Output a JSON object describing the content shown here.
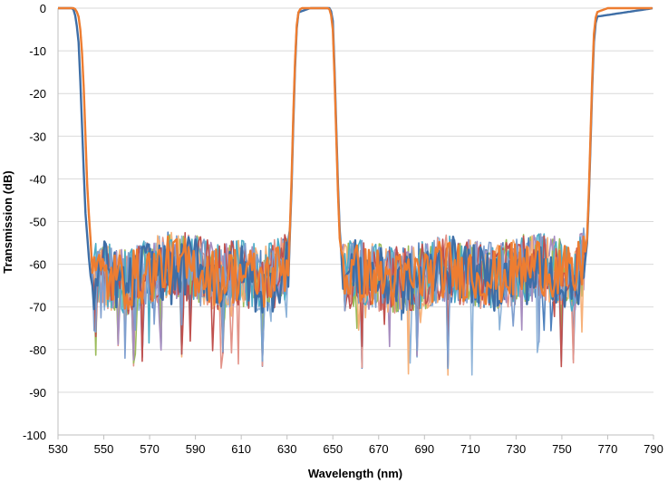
{
  "chart_data": {
    "type": "line",
    "title": "",
    "xlabel": "Wavelength (nm)",
    "ylabel": "Transmission (dB)",
    "xlim": [
      530,
      790
    ],
    "ylim": [
      -100,
      0
    ],
    "x_ticks": [
      530,
      550,
      570,
      590,
      610,
      630,
      650,
      670,
      690,
      710,
      730,
      750,
      770,
      790
    ],
    "y_ticks": [
      0,
      -10,
      -20,
      -30,
      -40,
      -50,
      -60,
      -70,
      -80,
      -90,
      -100
    ],
    "x_tick_labels": [
      "530",
      "550",
      "570",
      "590",
      "610",
      "630",
      "650",
      "670",
      "690",
      "710",
      "730",
      "750",
      "770",
      "790"
    ],
    "y_tick_labels": [
      "0",
      "-10",
      "-20",
      "-30",
      "-40",
      "-50",
      "-60",
      "-70",
      "-80",
      "-90",
      "-100"
    ],
    "grid": "horizontal",
    "legend": "none",
    "description_of_shape": "Dual notch (rejection) filter: passbands at ~0 dB below 538 nm, 635-650 nm and above 763 nm; stopbands ~545-632 nm and ~652-760 nm with noise floor around -55 to -70 dB and spikes to about -88 dB",
    "series": [
      {
        "color": "#ED7D31",
        "x": [
          530,
          537,
          538,
          539,
          540,
          541,
          542,
          543,
          544,
          545,
          550,
          560,
          570,
          580,
          590,
          600,
          610,
          620,
          630,
          631,
          632,
          633,
          634,
          635,
          636,
          640,
          648,
          649,
          650,
          651,
          652,
          653,
          654,
          655,
          660,
          680,
          700,
          720,
          740,
          750,
          755,
          760,
          761,
          762,
          763,
          764,
          765,
          770,
          790
        ],
        "y": [
          0,
          0,
          -0.5,
          -2,
          -6,
          -15,
          -30,
          -45,
          -52,
          -62,
          -63,
          -64,
          -62,
          -60,
          -61,
          -63,
          -62,
          -64,
          -60,
          -55,
          -40,
          -20,
          -5,
          -1,
          0,
          0,
          0,
          -0.5,
          -5,
          -20,
          -40,
          -54,
          -58,
          -63,
          -62,
          -64,
          -61,
          -63,
          -60,
          -62,
          -64,
          -58,
          -54,
          -40,
          -20,
          -6,
          -1,
          0,
          0
        ]
      },
      {
        "color": "#3E6EA6",
        "x": [
          530,
          536,
          537,
          538,
          539,
          540,
          541,
          542,
          543,
          544,
          545,
          550,
          560,
          570,
          580,
          590,
          600,
          610,
          620,
          630,
          631,
          632,
          633,
          634,
          635,
          640,
          649,
          650,
          651,
          652,
          653,
          654,
          655,
          660,
          680,
          700,
          720,
          740,
          750,
          755,
          760,
          761,
          762,
          763,
          764,
          765,
          790
        ],
        "y": [
          0,
          0,
          -0.5,
          -3,
          -8,
          -20,
          -35,
          -48,
          -55,
          -62,
          -65,
          -61,
          -66,
          -60,
          -63,
          -59,
          -65,
          -62,
          -66,
          -61,
          -56,
          -42,
          -22,
          -6,
          -1,
          0,
          0,
          -3,
          -18,
          -38,
          -52,
          -60,
          -64,
          -61,
          -65,
          -60,
          -64,
          -62,
          -63,
          -65,
          -60,
          -55,
          -42,
          -22,
          -8,
          -2,
          0
        ]
      }
    ],
    "noise_series_colors": [
      "#4E81BD",
      "#8FB4D9",
      "#E3948A",
      "#9BBB59",
      "#A68CBF",
      "#F7B27A",
      "#4BACC6",
      "#C0504D",
      "#7F9FCF"
    ],
    "notable_minima": [
      {
        "x": 545,
        "y": -79
      },
      {
        "x": 556,
        "y": -80
      },
      {
        "x": 563,
        "y": -84
      },
      {
        "x": 567,
        "y": -83
      },
      {
        "x": 575,
        "y": -81
      },
      {
        "x": 584,
        "y": -82
      },
      {
        "x": 602,
        "y": -81
      },
      {
        "x": 619,
        "y": -84
      },
      {
        "x": 623,
        "y": -88
      },
      {
        "x": 632,
        "y": -77
      },
      {
        "x": 663,
        "y": -85
      },
      {
        "x": 687,
        "y": -82
      },
      {
        "x": 700,
        "y": -86
      },
      {
        "x": 711,
        "y": -87
      },
      {
        "x": 750,
        "y": -84
      },
      {
        "x": 755,
        "y": -84
      },
      {
        "x": 762,
        "y": -80
      }
    ]
  }
}
